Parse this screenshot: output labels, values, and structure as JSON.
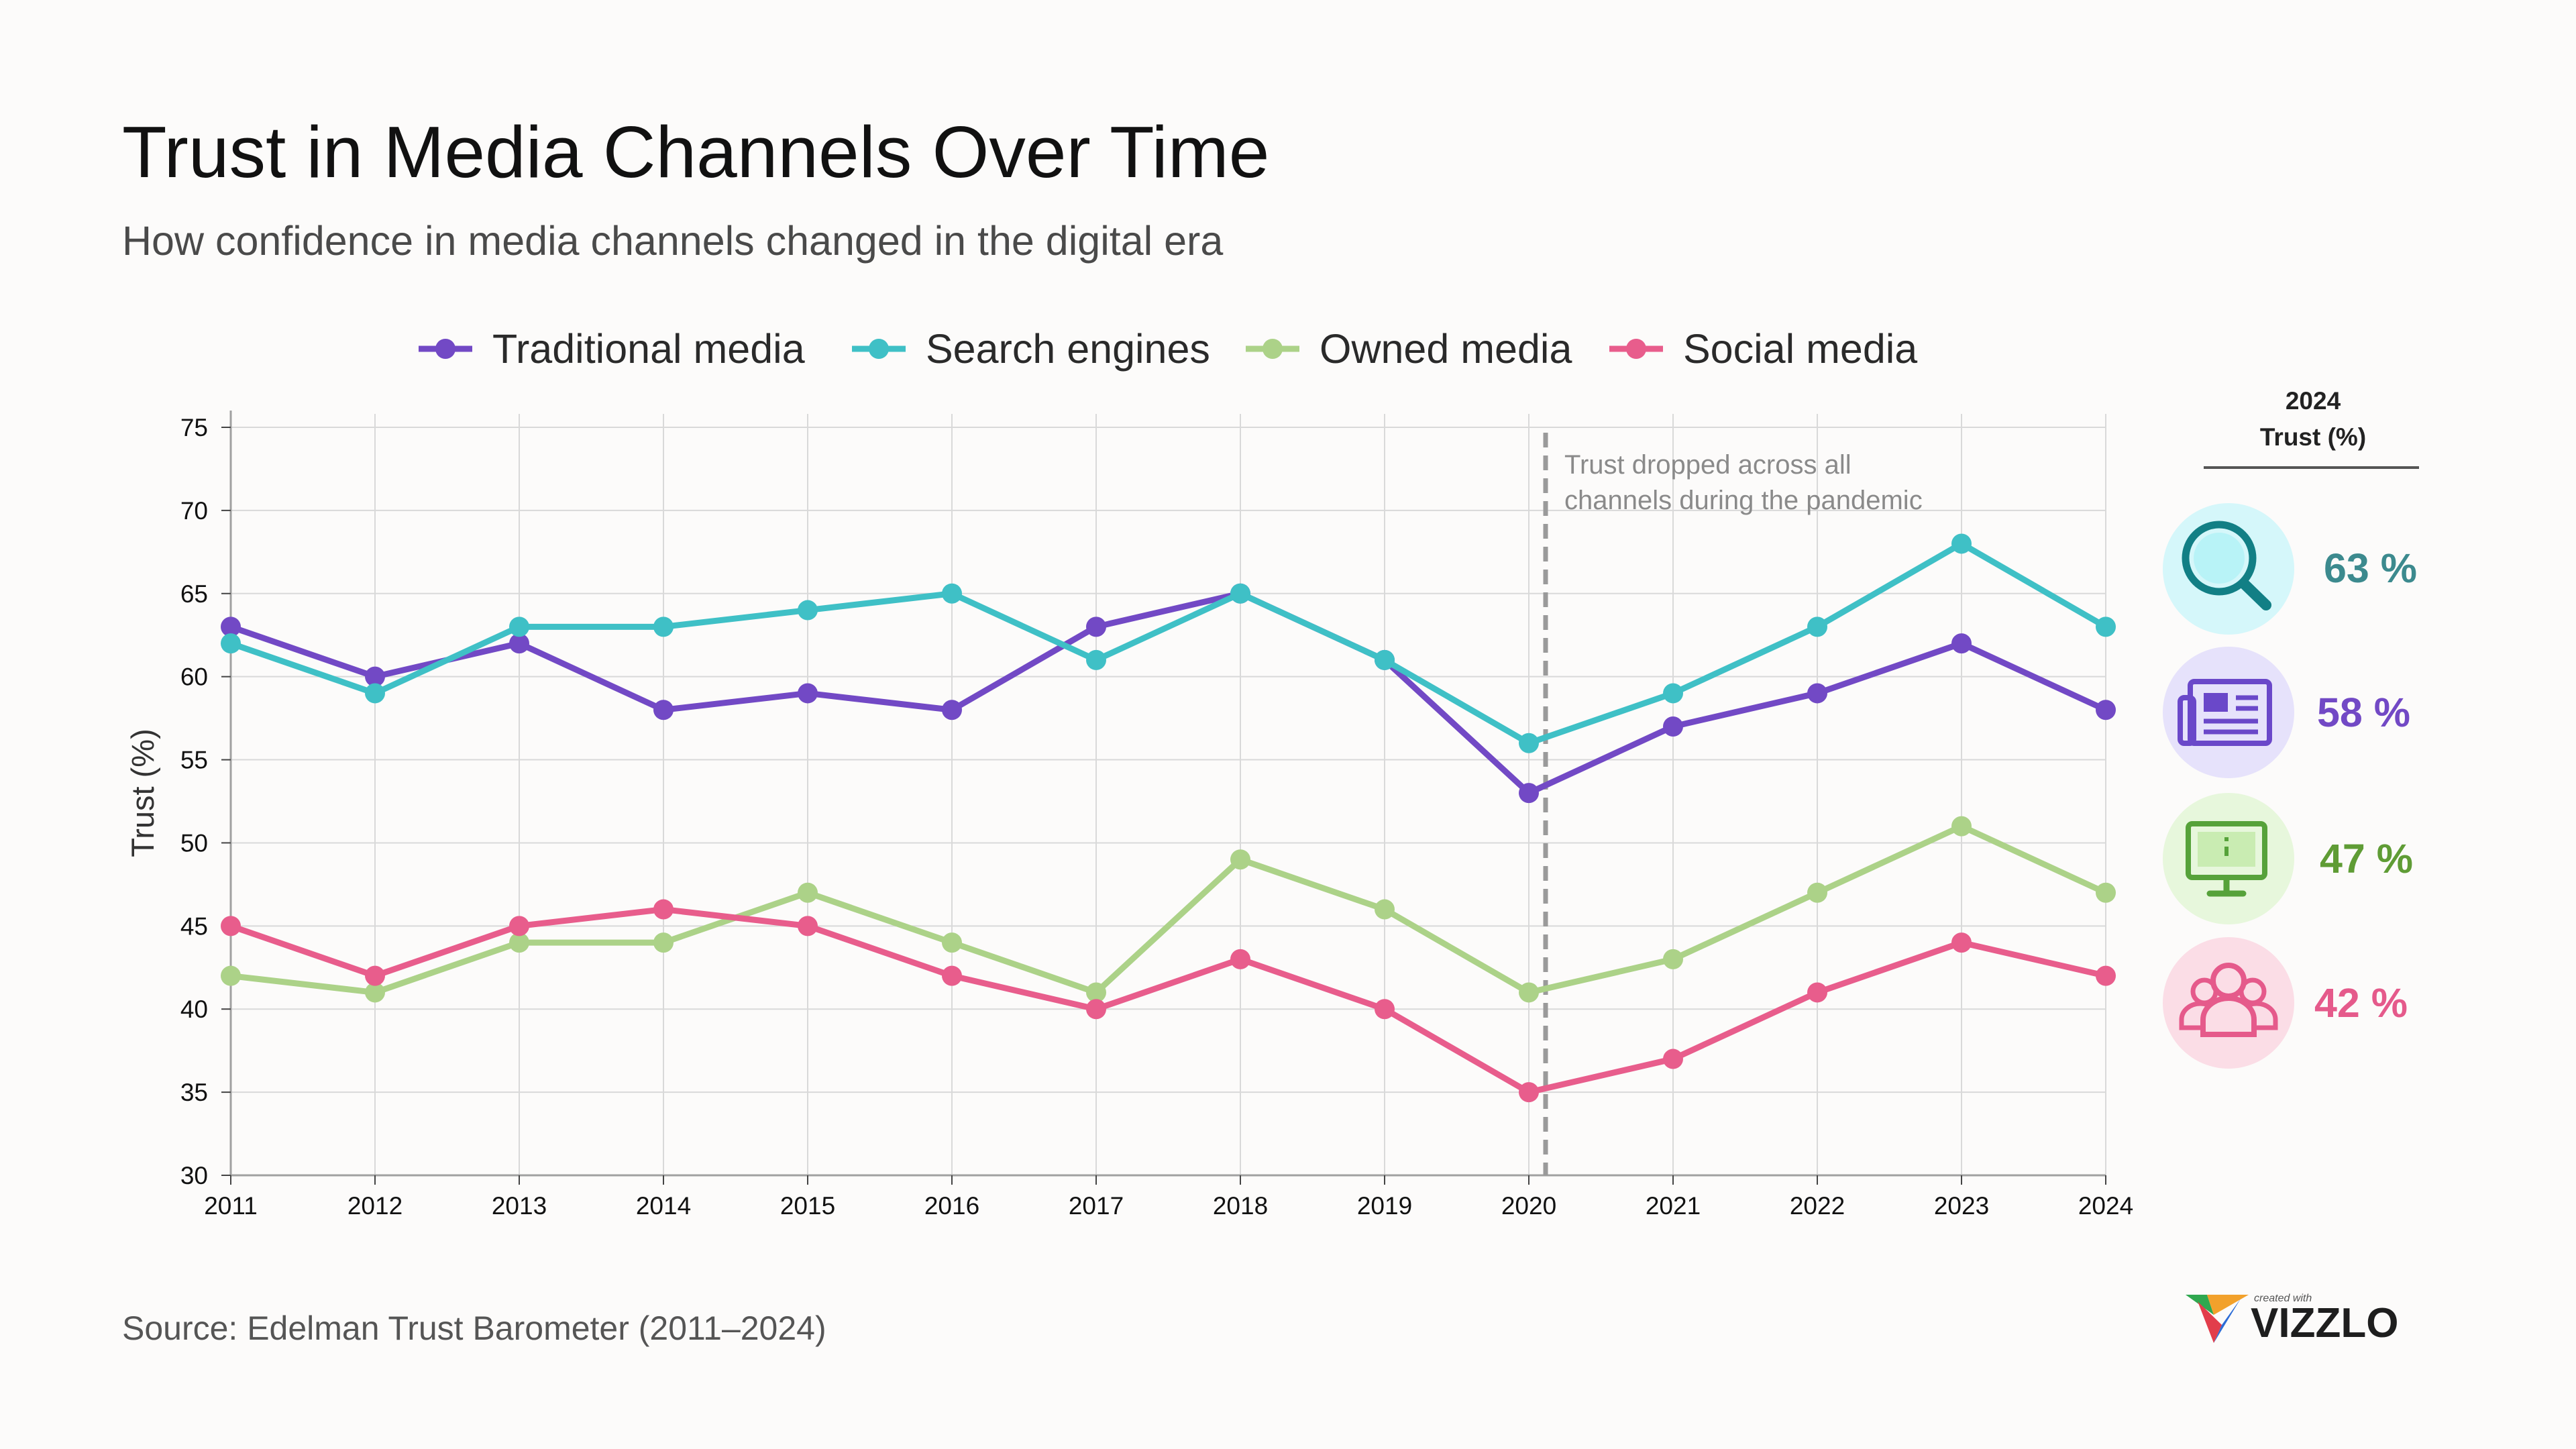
{
  "chart_data": {
    "type": "line",
    "title": "Trust in Media Channels Over Time",
    "subtitle": "How confidence in media channels changed in the digital era",
    "xlabel": "",
    "ylabel": "Trust (%)",
    "x": [
      "2011",
      "2012",
      "2013",
      "2014",
      "2015",
      "2016",
      "2017",
      "2018",
      "2019",
      "2020",
      "2021",
      "2022",
      "2023",
      "2024"
    ],
    "ylim": [
      30,
      75
    ],
    "yticks": [
      30,
      35,
      40,
      45,
      50,
      55,
      60,
      65,
      70,
      75
    ],
    "grid": true,
    "legend_position": "top",
    "series": [
      {
        "key": "traditional",
        "name": "Traditional media",
        "color": "#7249c5",
        "values": [
          63,
          60,
          62,
          58,
          59,
          58,
          63,
          65,
          61,
          53,
          57,
          59,
          62,
          58
        ]
      },
      {
        "key": "search",
        "name": "Search engines",
        "color": "#3fc0c6",
        "values": [
          62,
          59,
          63,
          63,
          64,
          65,
          61,
          65,
          61,
          56,
          59,
          63,
          68,
          63
        ]
      },
      {
        "key": "owned",
        "name": "Owned media",
        "color": "#acd288",
        "values": [
          42,
          41,
          44,
          44,
          47,
          44,
          41,
          49,
          46,
          41,
          43,
          47,
          51,
          47
        ]
      },
      {
        "key": "social",
        "name": "Social media",
        "color": "#e85d8c",
        "values": [
          45,
          42,
          45,
          46,
          45,
          42,
          40,
          43,
          40,
          35,
          37,
          41,
          44,
          42
        ]
      }
    ],
    "annotation": {
      "x": "2020",
      "line1": "Trust dropped across all",
      "line2": "channels during the pandemic"
    }
  },
  "panel": {
    "header_line1": "2024",
    "header_line2": "Trust (%)",
    "items": [
      {
        "icon": "magnifier-icon",
        "label": "63 %",
        "color": "#3c8a8e",
        "bg": "#d5f7fa",
        "stroke": "#127f85"
      },
      {
        "icon": "newspaper-icon",
        "label": "58 %",
        "color": "#7249c5",
        "bg": "#e6e2fb",
        "stroke": "#6a48c9"
      },
      {
        "icon": "monitor-icon",
        "label": "47 %",
        "color": "#5f9c35",
        "bg": "#e7f7dc",
        "stroke": "#56a23a"
      },
      {
        "icon": "people-icon",
        "label": "42 %",
        "color": "#e55a8b",
        "bg": "#fbdde6",
        "stroke": "#e55a8b"
      }
    ]
  },
  "source": "Source: Edelman Trust Barometer (2011–2024)",
  "logo": {
    "small": "created with",
    "name": "VIZZLO"
  }
}
